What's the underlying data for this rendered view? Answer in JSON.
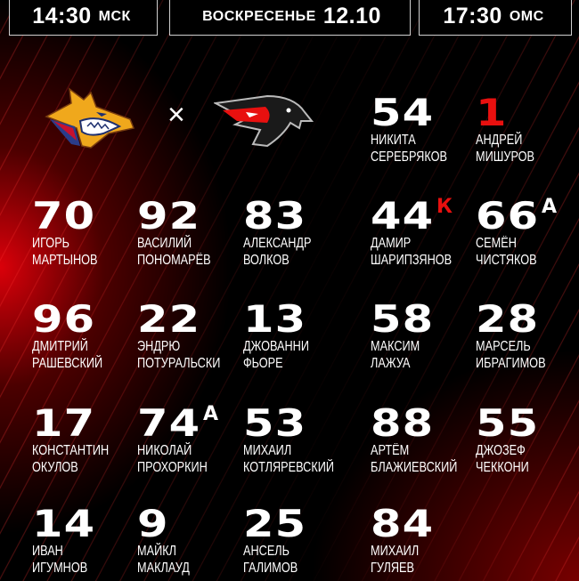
{
  "header": {
    "msk_time": "14:30",
    "msk_label": "МСК",
    "day": "ВОСКРЕСЕНЬЕ",
    "date": "12.10",
    "oms_time": "17:30",
    "oms_label": "ОМС"
  },
  "match": {
    "home_logo": "metallurg-fox-logo",
    "separator": "×",
    "away_logo": "avangard-hawk-logo"
  },
  "colors": {
    "accent_red": "#e8100f",
    "background": "#000000",
    "text": "#ffffff"
  },
  "goalies": [
    {
      "number": "54",
      "first": "НИКИТА",
      "last": "СЕРЕБРЯКОВ",
      "highlight": false
    },
    {
      "number": "1",
      "first": "АНДРЕЙ",
      "last": "МИШУРОВ",
      "highlight": true
    }
  ],
  "lines": [
    {
      "forwards": [
        {
          "number": "70",
          "first": "ИГОРЬ",
          "last": "МАРТЫНОВ"
        },
        {
          "number": "92",
          "first": "ВАСИЛИЙ",
          "last": "ПОНОМАРЁВ"
        },
        {
          "number": "83",
          "first": "АЛЕКСАНДР",
          "last": "ВОЛКОВ"
        }
      ],
      "defense": [
        {
          "number": "44",
          "first": "ДАМИР",
          "last": "ШАРИПЗЯНОВ",
          "badge": "К"
        },
        {
          "number": "66",
          "first": "СЕМЁН",
          "last": "ЧИСТЯКОВ",
          "badge": "А"
        }
      ]
    },
    {
      "forwards": [
        {
          "number": "96",
          "first": "ДМИТРИЙ",
          "last": "РАШЕВСКИЙ"
        },
        {
          "number": "22",
          "first": "ЭНДРЮ",
          "last": "ПОТУРАЛЬСКИ"
        },
        {
          "number": "13",
          "first": "ДЖОВАННИ",
          "last": "ФЬОРЕ"
        }
      ],
      "defense": [
        {
          "number": "58",
          "first": "МАКСИМ",
          "last": "ЛАЖУА"
        },
        {
          "number": "28",
          "first": "МАРСЕЛЬ",
          "last": "ИБРАГИМОВ"
        }
      ]
    },
    {
      "forwards": [
        {
          "number": "17",
          "first": "КОНСТАНТИН",
          "last": "ОКУЛОВ"
        },
        {
          "number": "74",
          "first": "НИКОЛАЙ",
          "last": "ПРОХОРКИН",
          "badge": "А"
        },
        {
          "number": "53",
          "first": "МИХАИЛ",
          "last": "КОТЛЯРЕВСКИЙ"
        }
      ],
      "defense": [
        {
          "number": "88",
          "first": "АРТЁМ",
          "last": "БЛАЖИЕВСКИЙ"
        },
        {
          "number": "55",
          "first": "ДЖОЗЕФ",
          "last": "ЧЕККОНИ"
        }
      ]
    },
    {
      "forwards": [
        {
          "number": "14",
          "first": "ИВАН",
          "last": "ИГУМНОВ"
        },
        {
          "number": "9",
          "first": "МАЙКЛ",
          "last": "МАКЛАУД"
        },
        {
          "number": "25",
          "first": "АНСЕЛЬ",
          "last": "ГАЛИМОВ"
        }
      ],
      "defense": [
        {
          "number": "84",
          "first": "МИХАИЛ",
          "last": "ГУЛЯЕВ"
        }
      ]
    }
  ]
}
